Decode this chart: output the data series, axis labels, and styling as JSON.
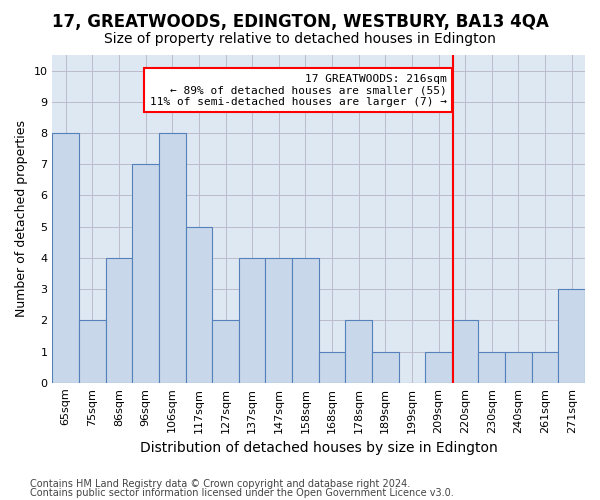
{
  "title": "17, GREATWOODS, EDINGTON, WESTBURY, BA13 4QA",
  "subtitle": "Size of property relative to detached houses in Edington",
  "xlabel": "Distribution of detached houses by size in Edington",
  "ylabel": "Number of detached properties",
  "categories": [
    "65sqm",
    "75sqm",
    "86sqm",
    "96sqm",
    "106sqm",
    "117sqm",
    "127sqm",
    "137sqm",
    "147sqm",
    "158sqm",
    "168sqm",
    "178sqm",
    "189sqm",
    "199sqm",
    "209sqm",
    "220sqm",
    "230sqm",
    "240sqm",
    "261sqm",
    "271sqm"
  ],
  "bar_heights": [
    8,
    2,
    4,
    7,
    8,
    5,
    2,
    4,
    4,
    4,
    1,
    2,
    1,
    0,
    1,
    2,
    1,
    1,
    1,
    3
  ],
  "bar_color": "#c8d8ea",
  "bar_edgecolor": "#5580bb",
  "ylim": [
    0,
    10.5
  ],
  "yticks": [
    0,
    1,
    2,
    3,
    4,
    5,
    6,
    7,
    8,
    9,
    10
  ],
  "red_line_x": 14.55,
  "annotation_line1": "17 GREATWOODS: 216sqm",
  "annotation_line2": "← 89% of detached houses are smaller (55)",
  "annotation_line3": "11% of semi-detached houses are larger (7) →",
  "footnote1": "Contains HM Land Registry data © Crown copyright and database right 2024.",
  "footnote2": "Contains public sector information licensed under the Open Government Licence v3.0.",
  "grid_color": "#bbbbcc",
  "bg_color": "#dde8f2",
  "title_fontsize": 12,
  "subtitle_fontsize": 10,
  "annotation_fontsize": 8,
  "xlabel_fontsize": 10,
  "ylabel_fontsize": 9,
  "tick_fontsize": 8,
  "footnote_fontsize": 7
}
